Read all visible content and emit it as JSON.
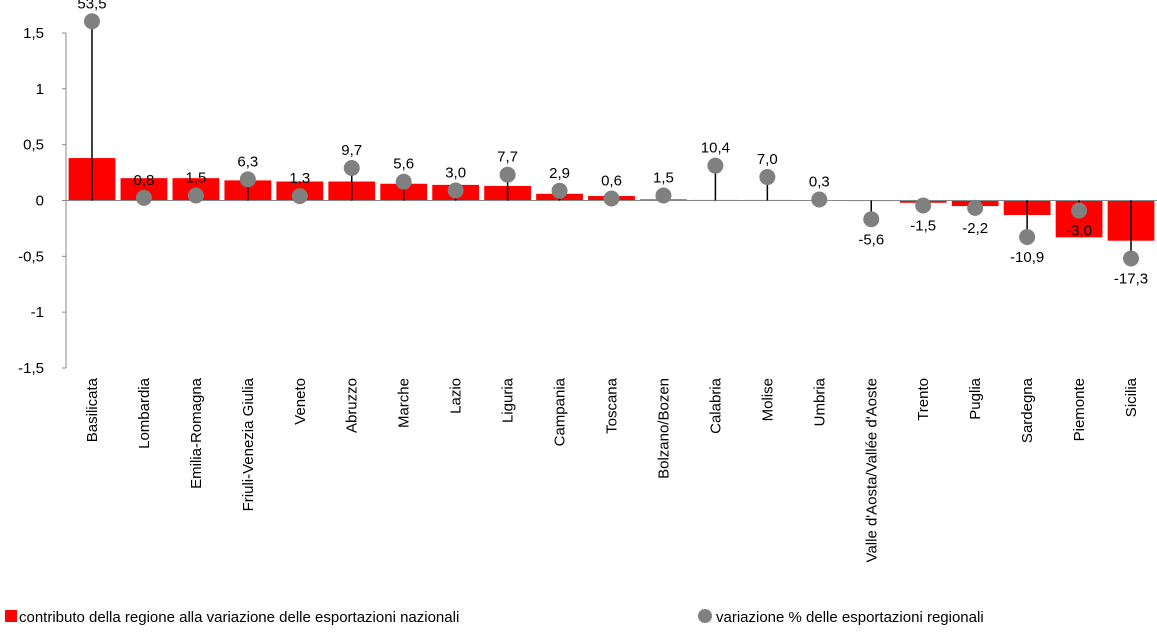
{
  "chart_data": {
    "type": "bar",
    "categories": [
      "Basilicata",
      "Lombardia",
      "Emilia-Romagna",
      "Friuli-Venezia Giulia",
      "Veneto",
      "Abruzzo",
      "Marche",
      "Lazio",
      "Liguria",
      "Campania",
      "Toscana",
      "Bolzano/Bozen",
      "Calabria",
      "Molise",
      "Umbria",
      "Valle d'Aosta/Vallée d'Aoste",
      "Trento",
      "Puglia",
      "Sardegna",
      "Piemonte",
      "Sicilia"
    ],
    "series": [
      {
        "name": "contributo della regione alla variazione delle esportazioni nazionali",
        "color": "#ff0000",
        "values": [
          0.38,
          0.2,
          0.2,
          0.18,
          0.17,
          0.17,
          0.15,
          0.14,
          0.13,
          0.06,
          0.04,
          0.01,
          0.005,
          0.005,
          0.002,
          -0.005,
          -0.02,
          -0.05,
          -0.13,
          -0.33,
          -0.36
        ]
      },
      {
        "name": "variazione % delle esportazioni regionali",
        "color": "#808080",
        "axis": "y2",
        "values": [
          53.5,
          0.8,
          1.5,
          6.3,
          1.3,
          9.7,
          5.6,
          3.0,
          7.7,
          2.9,
          0.6,
          1.5,
          10.4,
          7.0,
          0.3,
          -5.6,
          -1.5,
          -2.2,
          -10.9,
          -3.0,
          -17.3
        ],
        "value_labels": [
          "53,5",
          "0,8",
          "1,5",
          "6,3",
          "1,3",
          "9,7",
          "5,6",
          "3,0",
          "7,7",
          "2,9",
          "0,6",
          "1,5",
          "10,4",
          "7,0",
          "0,3",
          "-5,6",
          "-1,5",
          "-2,2",
          "-10,9",
          "-3,0",
          "-17,3"
        ]
      }
    ],
    "ylim": [
      -1.5,
      1.5
    ],
    "yticks": [
      {
        "value": -1.5,
        "label": "-1,5"
      },
      -1,
      {
        "value": -0.5,
        "label": "-0,5"
      },
      0,
      {
        "value": 0.5,
        "label": "0,5"
      },
      1,
      {
        "value": 1.5,
        "label": "1,5"
      }
    ],
    "y2lim": [
      -50,
      50
    ],
    "legend": "bottom"
  }
}
